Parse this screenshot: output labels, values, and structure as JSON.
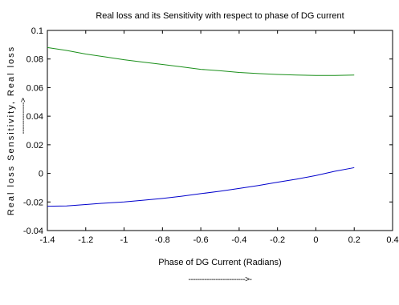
{
  "chart_data": {
    "type": "line",
    "title": "Real loss and its Sensitivity with respect to phase of DG current",
    "xlabel": "Phase of DG Current (Radians)",
    "xlabel_arrow": "------------------------->-",
    "ylabel": "Real loss Sensitivity, Real loss",
    "ylabel_arrow": "-------------->",
    "xlim": [
      -1.4,
      0.4
    ],
    "ylim": [
      -0.04,
      0.1
    ],
    "x_ticks": [
      "-1.4",
      "-1.2",
      "-1",
      "-0.8",
      "-0.6",
      "-0.4",
      "-0.2",
      "0",
      "0.2",
      "0.4"
    ],
    "y_ticks": [
      "-0.04",
      "-0.02",
      "0",
      "0.02",
      "0.04",
      "0.06",
      "0.08",
      "0.1"
    ],
    "grid": false,
    "series": [
      {
        "color": "#1a8f1a",
        "x": [
          -1.4,
          -1.3,
          -1.2,
          -1.1,
          -1.0,
          -0.9,
          -0.8,
          -0.7,
          -0.6,
          -0.5,
          -0.4,
          -0.3,
          -0.2,
          -0.1,
          0.0,
          0.1,
          0.2
        ],
        "y": [
          0.088,
          0.086,
          0.0835,
          0.0815,
          0.0795,
          0.0778,
          0.0762,
          0.0745,
          0.0728,
          0.0718,
          0.0706,
          0.0698,
          0.0692,
          0.0688,
          0.0685,
          0.0685,
          0.0688
        ]
      },
      {
        "color": "#0000cc",
        "x": [
          -1.4,
          -1.3,
          -1.2,
          -1.1,
          -1.0,
          -0.9,
          -0.8,
          -0.7,
          -0.6,
          -0.5,
          -0.4,
          -0.3,
          -0.2,
          -0.1,
          0.0,
          0.1,
          0.2
        ],
        "y": [
          -0.023,
          -0.0228,
          -0.0218,
          -0.0208,
          -0.02,
          -0.0188,
          -0.0175,
          -0.016,
          -0.0142,
          -0.0125,
          -0.0105,
          -0.0085,
          -0.0062,
          -0.004,
          -0.0015,
          0.0015,
          0.004
        ]
      }
    ]
  }
}
